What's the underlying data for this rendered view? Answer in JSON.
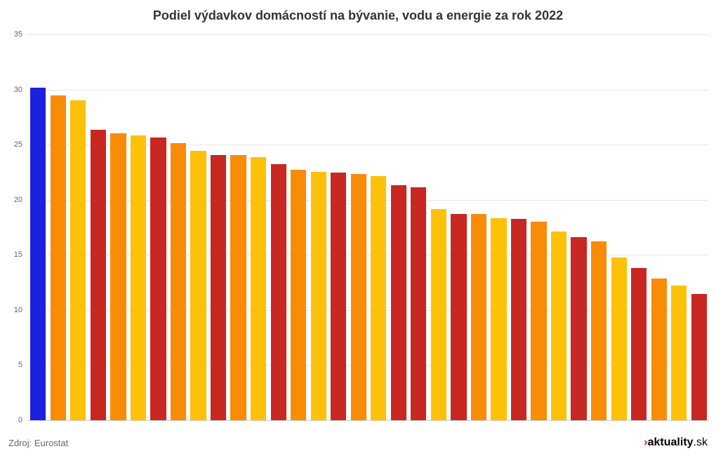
{
  "chart": {
    "type": "bar",
    "title": "Podiel výdavkov domácností na bývanie, vodu a energie za rok 2022",
    "title_fontsize": 18,
    "title_color": "#333333",
    "background_color": "#ffffff",
    "grid_color": "#e6e6e6",
    "ylim": [
      0,
      35
    ],
    "ytick_step": 5,
    "yticks": [
      0,
      5,
      10,
      15,
      20,
      25,
      30,
      35
    ],
    "label_fontsize": 11,
    "label_color": "#666666",
    "bar_width": 0.78,
    "values": [
      30.2,
      29.5,
      29.1,
      26.4,
      26.1,
      25.9,
      25.7,
      25.2,
      24.5,
      24.1,
      24.1,
      23.9,
      23.3,
      22.8,
      22.6,
      22.5,
      22.4,
      22.2,
      21.4,
      21.2,
      19.2,
      18.8,
      18.8,
      18.4,
      18.3,
      18.1,
      17.2,
      16.7,
      16.3,
      14.8,
      13.9,
      12.9,
      12.3,
      11.5
    ],
    "bar_colors": [
      "#1c20df",
      "#f98c07",
      "#fec109",
      "#c92722",
      "#f98c07",
      "#fec109",
      "#c92722",
      "#f98c07",
      "#fec109",
      "#c92722",
      "#f98c07",
      "#fec109",
      "#c92722",
      "#f98c07",
      "#fec109",
      "#c92722",
      "#f98c07",
      "#fec109",
      "#c92722",
      "#c92722",
      "#fec109",
      "#c92722",
      "#f98c07",
      "#fec109",
      "#c92722",
      "#f98c07",
      "#fec109",
      "#c92722",
      "#f98c07",
      "#fec109",
      "#c92722",
      "#f98c07",
      "#fec109",
      "#c92722"
    ]
  },
  "footer": {
    "source_label": "Zdroj: Eurostat",
    "brand_arrow": "›",
    "brand_main": "aktuality",
    "brand_suffix": ".sk"
  }
}
